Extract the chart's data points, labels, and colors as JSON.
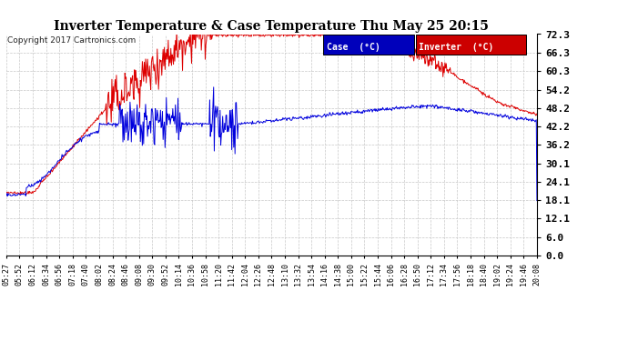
{
  "title": "Inverter Temperature & Case Temperature Thu May 25 20:15",
  "copyright": "Copyright 2017 Cartronics.com",
  "background_color": "#ffffff",
  "plot_bg_color": "#ffffff",
  "grid_color": "#c8c8c8",
  "yticks": [
    0.0,
    6.0,
    12.1,
    18.1,
    24.1,
    30.1,
    36.2,
    42.2,
    48.2,
    54.2,
    60.3,
    66.3,
    72.3
  ],
  "ymin": 0.0,
  "ymax": 72.3,
  "case_color": "#0000dd",
  "inverter_color": "#dd0000",
  "legend_case_bg": "#0000bb",
  "legend_inverter_bg": "#cc0000",
  "legend_case_label": "Case  (°C)",
  "legend_inverter_label": "Inverter  (°C)",
  "xtick_labels": [
    "05:27",
    "05:52",
    "06:12",
    "06:34",
    "06:56",
    "07:18",
    "07:40",
    "08:02",
    "08:24",
    "08:46",
    "09:08",
    "09:30",
    "09:52",
    "10:14",
    "10:36",
    "10:58",
    "11:20",
    "11:42",
    "12:04",
    "12:26",
    "12:48",
    "13:10",
    "13:32",
    "13:54",
    "14:16",
    "14:38",
    "15:00",
    "15:22",
    "15:44",
    "16:06",
    "16:28",
    "16:50",
    "17:12",
    "17:34",
    "17:56",
    "18:18",
    "18:40",
    "19:02",
    "19:24",
    "19:46",
    "20:08"
  ],
  "n_ticks": 41
}
